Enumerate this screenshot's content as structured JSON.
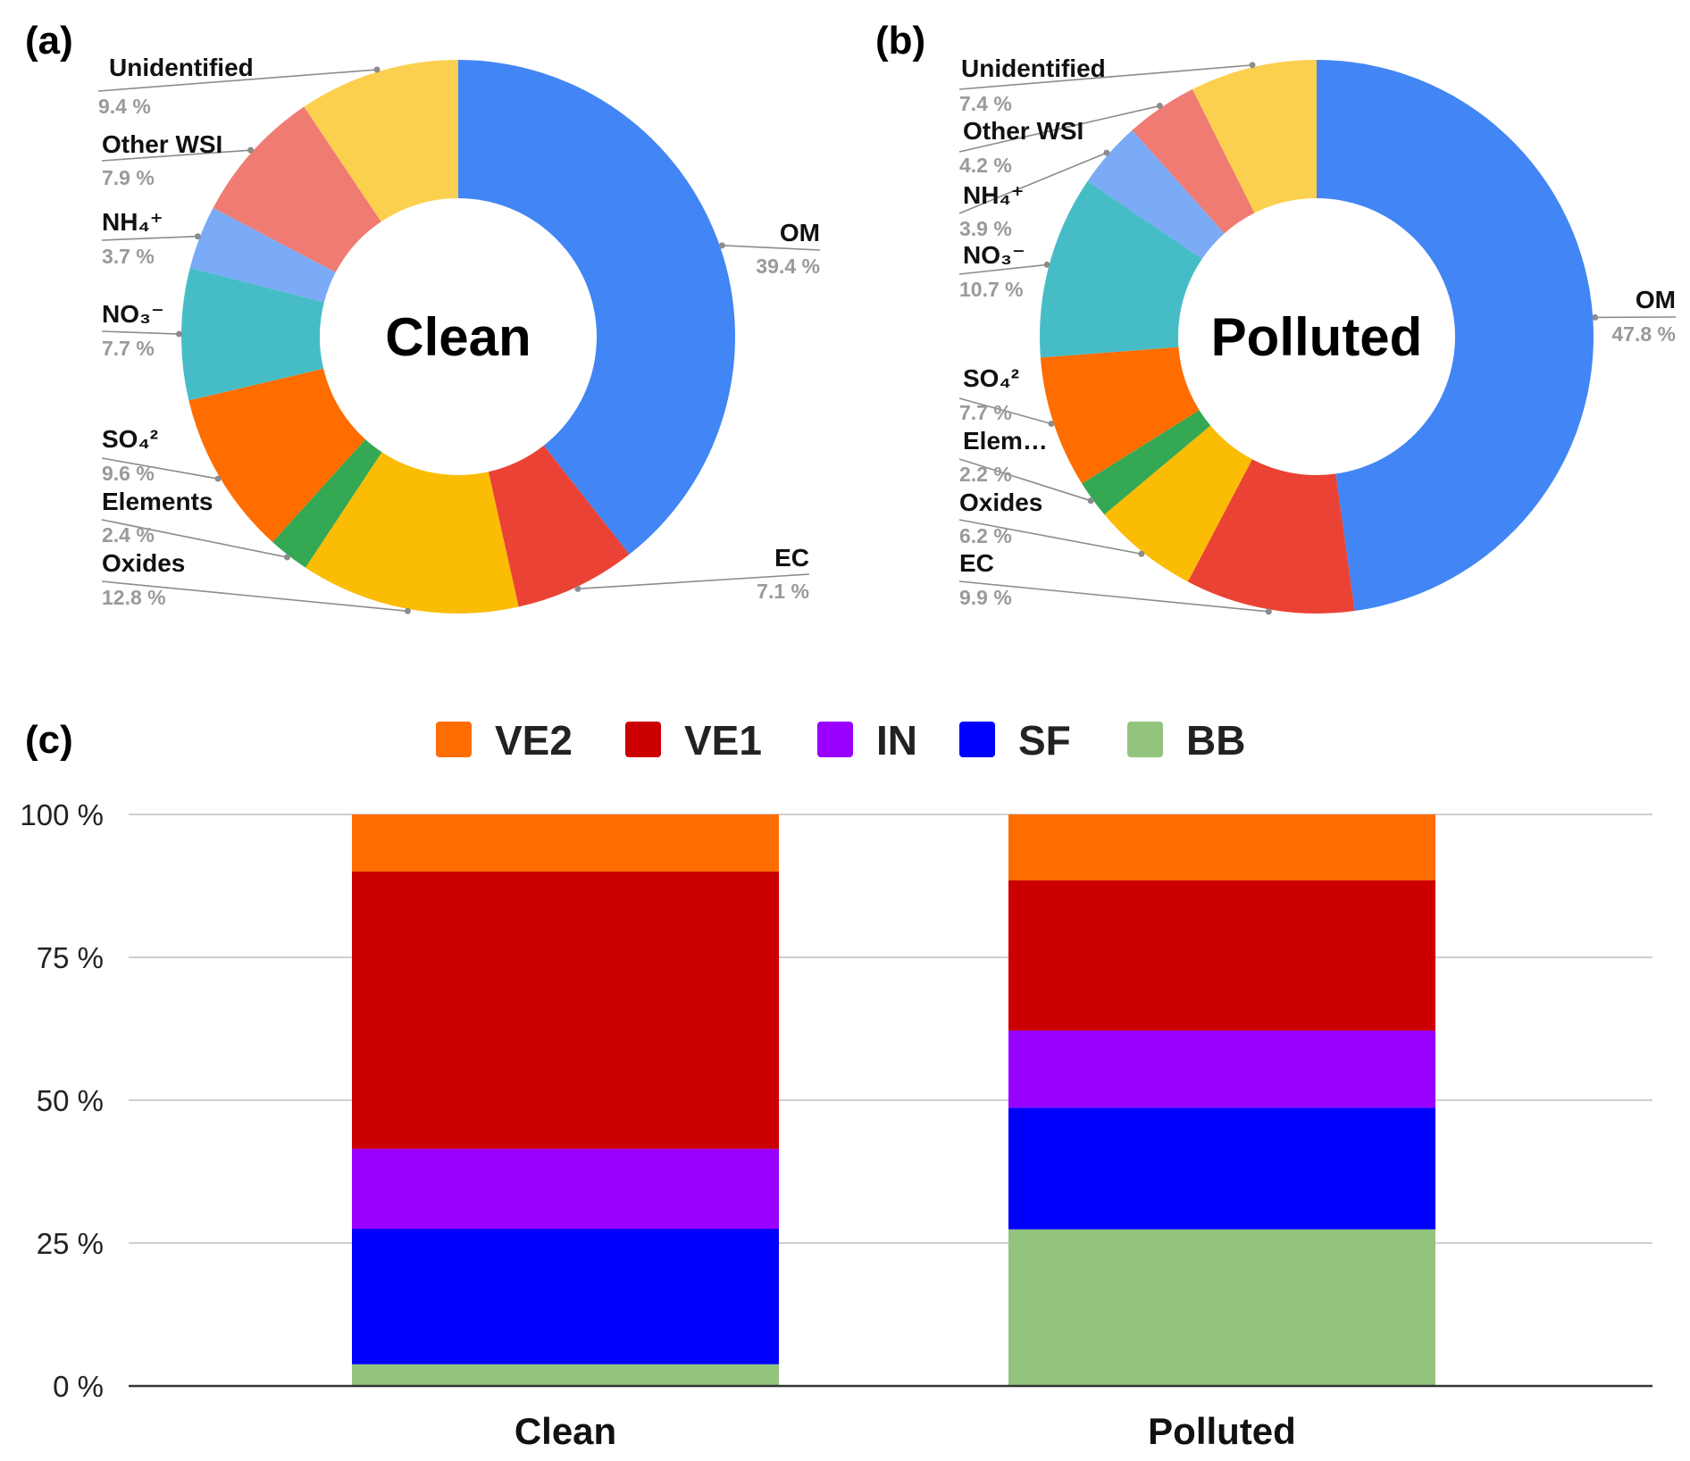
{
  "chart_data": [
    {
      "type": "pie",
      "panel": "(a)",
      "center_label": "Clean",
      "slices": [
        {
          "name": "OM",
          "value": 39.4,
          "pct_text": "39.4 %",
          "color": "#4285F4"
        },
        {
          "name": "EC",
          "value": 7.1,
          "pct_text": "7.1 %",
          "color": "#EA4335"
        },
        {
          "name": "Oxides",
          "value": 12.8,
          "pct_text": "12.8 %",
          "color": "#FBBC04"
        },
        {
          "name": "Elements",
          "value": 2.4,
          "pct_text": "2.4 %",
          "color": "#34A853"
        },
        {
          "name": "SO₄²",
          "value": 9.6,
          "pct_text": "9.6 %",
          "color": "#FF6D01"
        },
        {
          "name": "NO₃⁻",
          "value": 7.7,
          "pct_text": "7.7 %",
          "color": "#46BDC6"
        },
        {
          "name": "NH₄⁺",
          "value": 3.7,
          "pct_text": "3.7 %",
          "color": "#7BAAF7"
        },
        {
          "name": "Other WSI",
          "value": 7.9,
          "pct_text": "7.9 %",
          "color": "#F07B72"
        },
        {
          "name": "Unidentified",
          "value": 9.4,
          "pct_text": "9.4 %",
          "color": "#FCD04F"
        }
      ]
    },
    {
      "type": "pie",
      "panel": "(b)",
      "center_label": "Polluted",
      "slices": [
        {
          "name": "OM",
          "value": 47.8,
          "pct_text": "47.8 %",
          "color": "#4285F4"
        },
        {
          "name": "EC",
          "value": 9.9,
          "pct_text": "9.9 %",
          "color": "#EA4335"
        },
        {
          "name": "Oxides",
          "value": 6.2,
          "pct_text": "6.2 %",
          "color": "#FBBC04"
        },
        {
          "name": "Elem…",
          "value": 2.2,
          "pct_text": "2.2 %",
          "color": "#34A853"
        },
        {
          "name": "SO₄²",
          "value": 7.7,
          "pct_text": "7.7 %",
          "color": "#FF6D01"
        },
        {
          "name": "NO₃⁻",
          "value": 10.7,
          "pct_text": "10.7 %",
          "color": "#46BDC6"
        },
        {
          "name": "NH₄⁺",
          "value": 3.9,
          "pct_text": "3.9 %",
          "color": "#7BAAF7"
        },
        {
          "name": "Other WSI",
          "value": 4.2,
          "pct_text": "4.2 %",
          "color": "#F07B72"
        },
        {
          "name": "Unidentified",
          "value": 7.4,
          "pct_text": "7.4 %",
          "color": "#FCD04F"
        }
      ]
    },
    {
      "type": "bar",
      "stacked": true,
      "panel": "(c)",
      "categories": [
        "Clean",
        "Polluted"
      ],
      "series": [
        {
          "name": "BB",
          "color": "#93C47D",
          "values": [
            3.8,
            27.4
          ]
        },
        {
          "name": "SF",
          "color": "#0000FF",
          "values": [
            23.7,
            21.3
          ]
        },
        {
          "name": "IN",
          "color": "#9900FF",
          "values": [
            14.0,
            13.5
          ]
        },
        {
          "name": "VE1",
          "color": "#CC0000",
          "values": [
            48.5,
            26.3
          ]
        },
        {
          "name": "VE2",
          "color": "#FF6D01",
          "values": [
            10.0,
            11.5
          ]
        }
      ],
      "legend_order": [
        "VE2",
        "VE1",
        "IN",
        "SF",
        "BB"
      ],
      "yticks": [
        "0 %",
        "25 %",
        "50 %",
        "75 %",
        "100 %"
      ],
      "ylim": [
        0,
        100
      ],
      "grid": true,
      "legend_position": "top"
    }
  ]
}
